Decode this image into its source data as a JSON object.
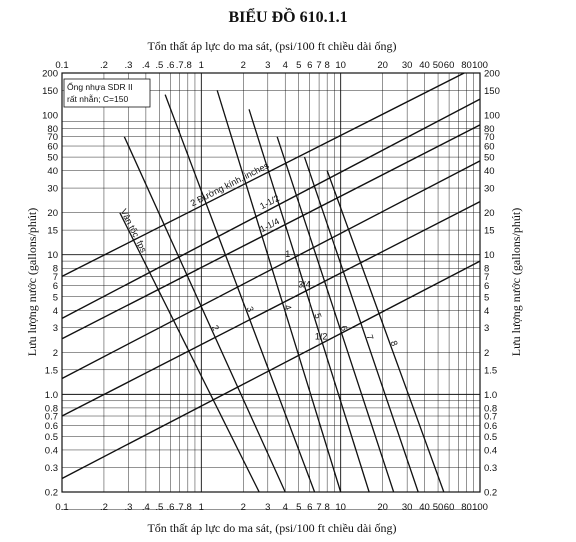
{
  "chart_data": {
    "type": "line",
    "title": "BIỂU ĐỒ 610.1.1",
    "xlabel_top": "Tổn thất áp lực do ma sát, (psi/100 ft chiều dài ống)",
    "xlabel_bottom": "Tổn thất áp lực do ma sát, (psi/100 ft chiều dài ống)",
    "ylabel_left": "Lưu lượng nước (gallons/phút)",
    "ylabel_right": "Lưu lượng nước (gallons/phút)",
    "x_scale": "log",
    "y_scale": "log",
    "xlim": [
      0.1,
      100
    ],
    "ylim": [
      0.2,
      200
    ],
    "grid": true,
    "note": [
      "Ống nhựa SDR II",
      "rất nhẵn; C=150"
    ],
    "x_ticks": [
      {
        "v": 0.1,
        "label": "0.1"
      },
      {
        "v": 0.2,
        "label": ".2"
      },
      {
        "v": 0.3,
        "label": ".3"
      },
      {
        "v": 0.4,
        "label": ".4"
      },
      {
        "v": 0.5,
        "label": ".5"
      },
      {
        "v": 0.6,
        "label": ".6"
      },
      {
        "v": 0.7,
        "label": ".7"
      },
      {
        "v": 0.8,
        "label": ".8"
      },
      {
        "v": 1,
        "label": "1"
      },
      {
        "v": 2,
        "label": "2"
      },
      {
        "v": 3,
        "label": "3"
      },
      {
        "v": 4,
        "label": "4"
      },
      {
        "v": 5,
        "label": "5"
      },
      {
        "v": 6,
        "label": "6"
      },
      {
        "v": 7,
        "label": "7"
      },
      {
        "v": 8,
        "label": "8"
      },
      {
        "v": 10,
        "label": "10"
      },
      {
        "v": 20,
        "label": "20"
      },
      {
        "v": 30,
        "label": "30"
      },
      {
        "v": 40,
        "label": "40"
      },
      {
        "v": 50,
        "label": "50"
      },
      {
        "v": 60,
        "label": "60"
      },
      {
        "v": 80,
        "label": "80"
      },
      {
        "v": 100,
        "label": "100"
      }
    ],
    "y_ticks": [
      {
        "v": 200,
        "label": "200"
      },
      {
        "v": 150,
        "label": "150"
      },
      {
        "v": 100,
        "label": "100"
      },
      {
        "v": 80,
        "label": "80"
      },
      {
        "v": 70,
        "label": "70"
      },
      {
        "v": 60,
        "label": "60"
      },
      {
        "v": 50,
        "label": "50"
      },
      {
        "v": 40,
        "label": "40"
      },
      {
        "v": 30,
        "label": "30"
      },
      {
        "v": 20,
        "label": "20"
      },
      {
        "v": 15,
        "label": "15"
      },
      {
        "v": 10,
        "label": "10"
      },
      {
        "v": 8,
        "label": "8"
      },
      {
        "v": 7,
        "label": "7"
      },
      {
        "v": 6,
        "label": "6"
      },
      {
        "v": 5,
        "label": "5"
      },
      {
        "v": 4,
        "label": "4"
      },
      {
        "v": 3,
        "label": "3"
      },
      {
        "v": 2,
        "label": "2"
      },
      {
        "v": 1.5,
        "label": "1.5"
      },
      {
        "v": 1.0,
        "label": "1.0"
      },
      {
        "v": 0.8,
        "label": "0.8"
      },
      {
        "v": 0.7,
        "label": "0.7"
      },
      {
        "v": 0.6,
        "label": "0.6"
      },
      {
        "v": 0.5,
        "label": "0.5"
      },
      {
        "v": 0.4,
        "label": "0.4"
      },
      {
        "v": 0.3,
        "label": "0.3"
      },
      {
        "v": 0.2,
        "label": "0.2"
      }
    ],
    "flow_series": [
      {
        "name": "1/2",
        "x1": 0.1,
        "y1": 0.25,
        "x2": 100,
        "y2": 9
      },
      {
        "name": "3/4",
        "x1": 0.1,
        "y1": 0.7,
        "x2": 100,
        "y2": 24
      },
      {
        "name": "1",
        "x1": 0.1,
        "y1": 1.3,
        "x2": 100,
        "y2": 47
      },
      {
        "name": "1-1/4",
        "x1": 0.1,
        "y1": 2.5,
        "x2": 100,
        "y2": 85
      },
      {
        "name": "1-1/2",
        "x1": 0.1,
        "y1": 3.5,
        "x2": 100,
        "y2": 130
      },
      {
        "name": "2",
        "x1": 0.1,
        "y1": 7,
        "x2": 77,
        "y2": 200
      }
    ],
    "diameter_label": "2 Đường kính, inches",
    "velocity_series": [
      {
        "name": "Vận tốc, fps",
        "x1": 0.26,
        "y1": 20,
        "x2": 2.6,
        "y2": 0.2
      },
      {
        "name": "2",
        "x1": 0.28,
        "y1": 70,
        "x2": 4.0,
        "y2": 0.2
      },
      {
        "name": "3",
        "x1": 0.55,
        "y1": 140,
        "x2": 6.5,
        "y2": 0.2
      },
      {
        "name": "4",
        "x1": 1.3,
        "y1": 150,
        "x2": 10,
        "y2": 0.2
      },
      {
        "name": "5",
        "x1": 2.2,
        "y1": 110,
        "x2": 16,
        "y2": 0.2
      },
      {
        "name": "6",
        "x1": 3.5,
        "y1": 70,
        "x2": 24,
        "y2": 0.2
      },
      {
        "name": "7",
        "x1": 5.5,
        "y1": 50,
        "x2": 36,
        "y2": 0.2
      },
      {
        "name": "8",
        "x1": 8,
        "y1": 40,
        "x2": 55,
        "y2": 0.2
      }
    ]
  }
}
